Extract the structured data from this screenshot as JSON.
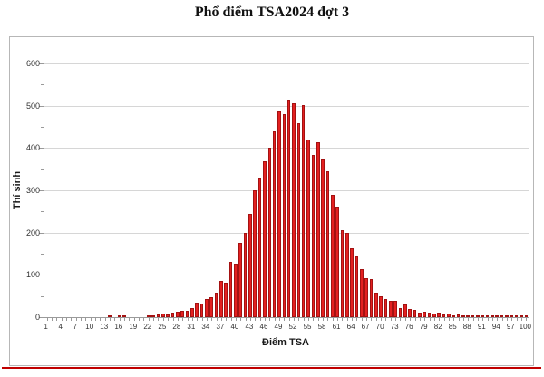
{
  "chart_data": {
    "type": "bar",
    "title": "Phổ điểm TSA2024 đợt 3",
    "xlabel": "Điểm TSA",
    "ylabel": "Thí sinh",
    "ylim": [
      0,
      600
    ],
    "y_ticks": [
      0,
      100,
      200,
      300,
      400,
      500,
      600
    ],
    "y_minor_step": 50,
    "x_tick_labels": [
      1,
      4,
      7,
      10,
      13,
      16,
      19,
      22,
      25,
      28,
      31,
      34,
      37,
      40,
      43,
      46,
      49,
      52,
      55,
      58,
      61,
      64,
      67,
      70,
      73,
      76,
      79,
      82,
      85,
      88,
      91,
      94,
      97,
      100
    ],
    "categories": [
      1,
      2,
      3,
      4,
      5,
      6,
      7,
      8,
      9,
      10,
      11,
      12,
      13,
      14,
      15,
      16,
      17,
      18,
      19,
      20,
      21,
      22,
      23,
      24,
      25,
      26,
      27,
      28,
      29,
      30,
      31,
      32,
      33,
      34,
      35,
      36,
      37,
      38,
      39,
      40,
      41,
      42,
      43,
      44,
      45,
      46,
      47,
      48,
      49,
      50,
      51,
      52,
      53,
      54,
      55,
      56,
      57,
      58,
      59,
      60,
      61,
      62,
      63,
      64,
      65,
      66,
      67,
      68,
      69,
      70,
      71,
      72,
      73,
      74,
      75,
      76,
      77,
      78,
      79,
      80,
      81,
      82,
      83,
      84,
      85,
      86,
      87,
      88,
      89,
      90,
      91,
      92,
      93,
      94,
      95,
      96,
      97,
      98,
      99,
      100
    ],
    "values": [
      0,
      0,
      0,
      0,
      0,
      0,
      0,
      0,
      0,
      0,
      0,
      0,
      0,
      4,
      0,
      3,
      3,
      0,
      0,
      0,
      0,
      4,
      3,
      6,
      9,
      7,
      10,
      13,
      16,
      14,
      22,
      35,
      32,
      42,
      47,
      57,
      85,
      82,
      130,
      127,
      175,
      200,
      245,
      300,
      330,
      368,
      400,
      440,
      487,
      480,
      515,
      505,
      458,
      502,
      420,
      383,
      413,
      376,
      345,
      290,
      262,
      205,
      199,
      163,
      143,
      114,
      93,
      90,
      57,
      49,
      42,
      38,
      38,
      22,
      30,
      20,
      17,
      11,
      13,
      10,
      8,
      10,
      6,
      8,
      5,
      7,
      4,
      5,
      3,
      4,
      3,
      2,
      2,
      3,
      2,
      2,
      3,
      2,
      1,
      2
    ],
    "grid": true,
    "legend": false,
    "bar_color": "#e32020",
    "bar_border_color": "#a31212",
    "gridline_color": "#d6d6d6",
    "axis_color": "#9a9a9a",
    "title_color": "#111111",
    "label_color": "#333333"
  },
  "footer": {
    "rule_color": "#c00000"
  }
}
